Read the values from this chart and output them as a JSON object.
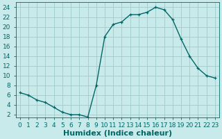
{
  "x": [
    0,
    1,
    2,
    3,
    4,
    5,
    6,
    7,
    8,
    9,
    10,
    11,
    12,
    13,
    14,
    15,
    16,
    17,
    18,
    19,
    20,
    21,
    22,
    23
  ],
  "y": [
    6.5,
    6.0,
    5.0,
    4.5,
    3.5,
    2.5,
    2.0,
    2.0,
    1.5,
    8.0,
    18.0,
    20.5,
    21.0,
    22.5,
    22.5,
    23.0,
    24.0,
    23.5,
    21.5,
    17.5,
    14.0,
    11.5,
    10.0,
    9.5
  ],
  "line_color": "#006666",
  "marker": "+",
  "bg_color": "#c8eaea",
  "grid_color": "#a0cccc",
  "xlabel": "Humidex (Indice chaleur)",
  "xlim": [
    -0.5,
    23.5
  ],
  "ylim": [
    1.5,
    25
  ],
  "yticks": [
    2,
    4,
    6,
    8,
    10,
    12,
    14,
    16,
    18,
    20,
    22,
    24
  ],
  "xticks": [
    0,
    1,
    2,
    3,
    4,
    5,
    6,
    7,
    8,
    9,
    10,
    11,
    12,
    13,
    14,
    15,
    16,
    17,
    18,
    19,
    20,
    21,
    22,
    23
  ],
  "tick_color": "#006666",
  "axis_color": "#006666",
  "label_fontsize": 8,
  "tick_fontsize": 6.5
}
